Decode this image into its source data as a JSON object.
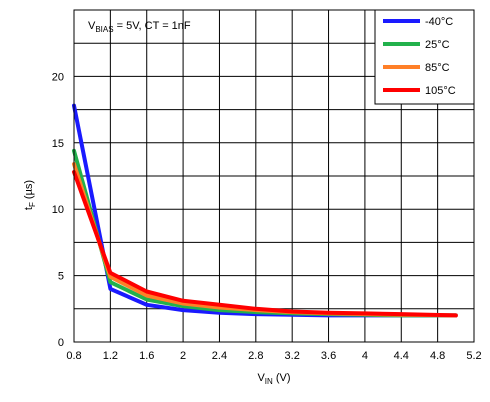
{
  "chart_data": {
    "type": "line",
    "annotation": {
      "main": "V",
      "sub": "BIAS",
      "rest": " = 5V, CT = 1nF"
    },
    "xlabel": {
      "main": "V",
      "sub": "IN",
      "rest": " (V)"
    },
    "ylabel": {
      "main": "t",
      "sub": "F",
      "rest": " (µs)"
    },
    "xlim": [
      0.8,
      5.2
    ],
    "ylim": [
      0,
      25
    ],
    "xticks": [
      "0.8",
      "1.2",
      "1.6",
      "2",
      "2.4",
      "2.8",
      "3.2",
      "3.6",
      "4",
      "4.4",
      "4.8",
      "5.2"
    ],
    "yticks": [
      "0",
      "5",
      "10",
      "15",
      "20"
    ],
    "grid": true,
    "legend_position": "top-right",
    "x": [
      0.8,
      1.2,
      1.6,
      2.0,
      2.4,
      2.8,
      3.2,
      3.6,
      4.0,
      4.4,
      5.0
    ],
    "series": [
      {
        "name": "-40°C",
        "color": "#1a1aff",
        "values": [
          17.8,
          4.0,
          2.8,
          2.4,
          2.2,
          2.1,
          2.05,
          2.0,
          2.0,
          2.0,
          2.0
        ]
      },
      {
        "name": "25°C",
        "color": "#22b14c",
        "values": [
          14.4,
          4.5,
          3.2,
          2.7,
          2.4,
          2.25,
          2.15,
          2.1,
          2.05,
          2.0,
          2.0
        ]
      },
      {
        "name": "85°C",
        "color": "#ff7f27",
        "values": [
          13.4,
          4.9,
          3.5,
          2.9,
          2.6,
          2.4,
          2.25,
          2.15,
          2.1,
          2.05,
          2.0
        ]
      },
      {
        "name": "105°C",
        "color": "#ff0000",
        "values": [
          12.8,
          5.2,
          3.8,
          3.1,
          2.8,
          2.5,
          2.3,
          2.2,
          2.15,
          2.1,
          2.0
        ]
      }
    ]
  }
}
